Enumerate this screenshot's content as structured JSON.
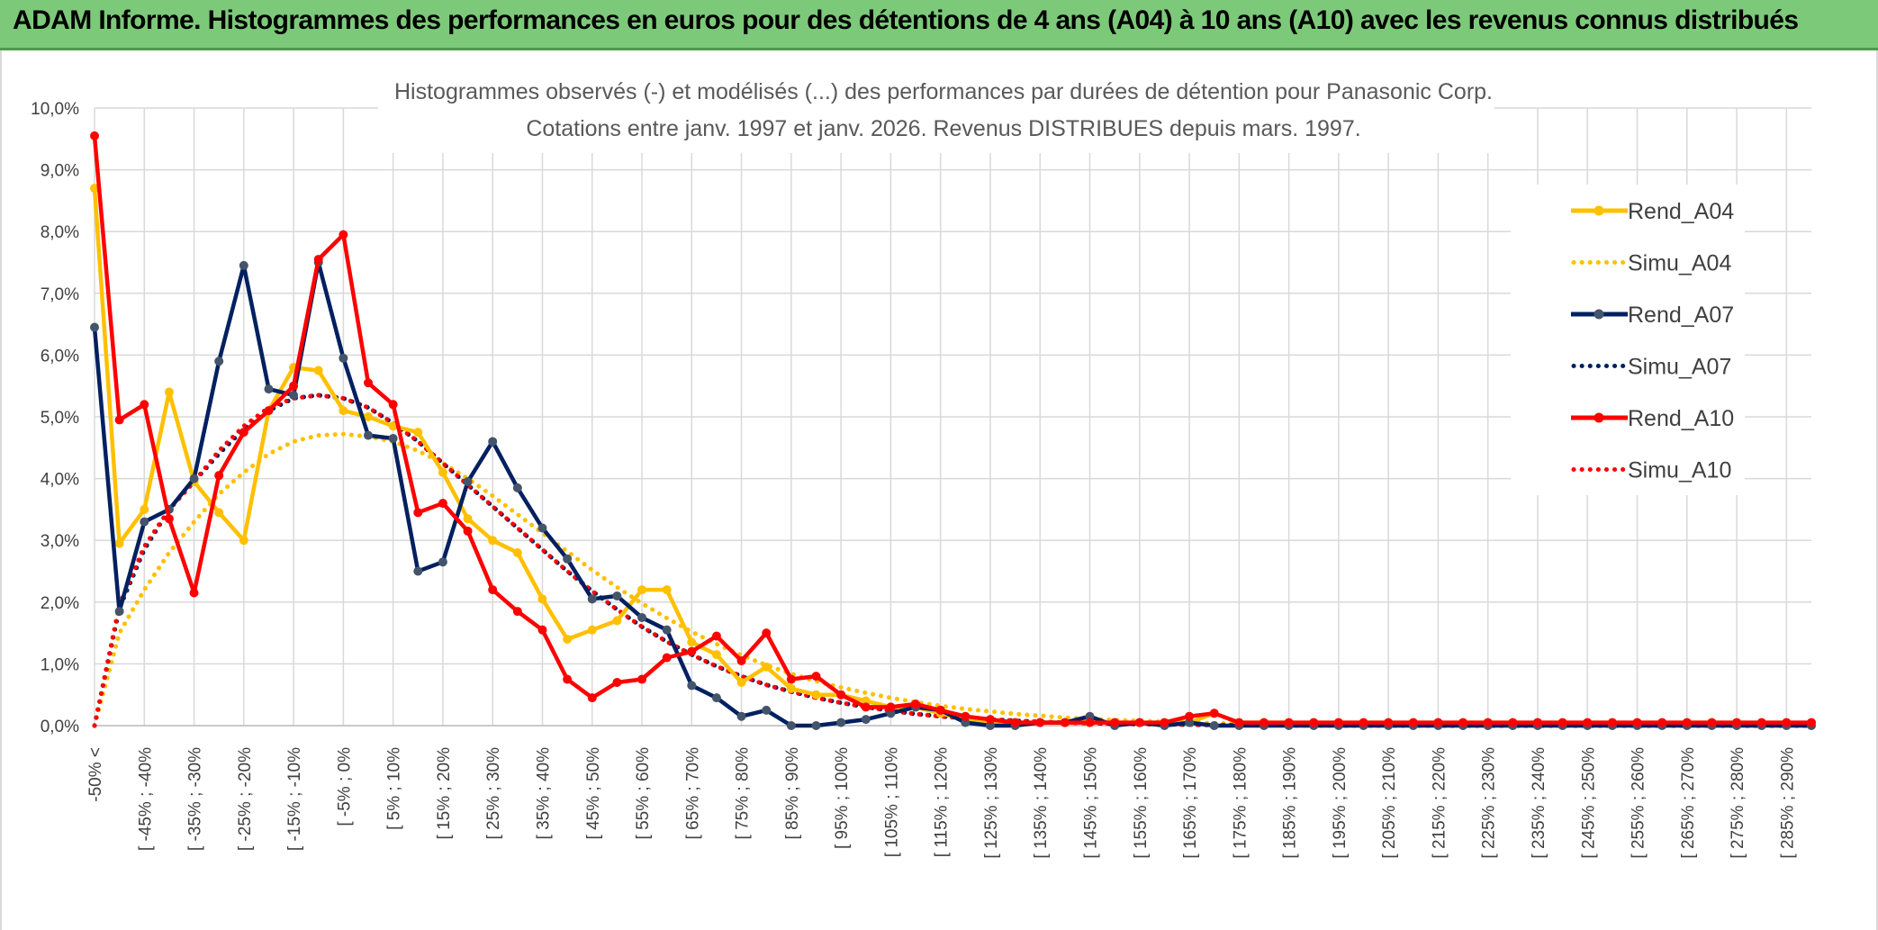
{
  "header": {
    "title": "ADAM Informe. Histogrammes des performances en euros pour des détentions de 4 ans (A04) à 10 ans (A10) avec les revenus connus distribués"
  },
  "chart_data": {
    "type": "line",
    "title": "Histogrammes observés (-) et modélisés (...) des performances par durées de détention pour Panasonic Corp.",
    "subtitle": "Cotations entre janv. 1997 et janv. 2026. Revenus DISTRIBUES depuis mars. 1997.",
    "xlabel": "",
    "ylabel": "",
    "ylim": [
      0,
      10
    ],
    "y_ticks": [
      "0,0%",
      "1,0%",
      "2,0%",
      "3,0%",
      "4,0%",
      "5,0%",
      "6,0%",
      "7,0%",
      "8,0%",
      "9,0%",
      "10,0%"
    ],
    "grid": true,
    "legend_position": "right",
    "x_labels": [
      "-50% <",
      "[ -45% ; -40%",
      "[ -35% ; -30%",
      "[ -25% ; -20%",
      "[ -15% ; -10%",
      "[ -5% ; 0%",
      "[ 5% ; 10%",
      "[ 15% ; 20%",
      "[ 25% ; 30%",
      "[ 35% ; 40%",
      "[ 45% ; 50%",
      "[ 55% ; 60%",
      "[ 65% ; 70%",
      "[ 75% ; 80%",
      "[ 85% ; 90%",
      "[ 95% ; 100%",
      "[ 105% ; 110%",
      "[ 115% ; 120%",
      "[ 125% ; 130%",
      "[ 135% ; 140%",
      "[ 145% ; 150%",
      "[ 155% ; 160%",
      "[ 165% ; 170%",
      "[ 175% ; 180%",
      "[ 185% ; 190%",
      "[ 195% ; 200%",
      "[ 205% ; 210%",
      "[ 215% ; 220%",
      "[ 225% ; 230%",
      "[ 235% ; 240%",
      "[ 245% ; 250%",
      "[ 255% ; 260%",
      "[ 265% ; 270%",
      "[ 275% ; 280%",
      "[ 285% ; 290%"
    ],
    "n_points": 70,
    "series": [
      {
        "name": "Rend_A04",
        "color": "#ffc000",
        "style": "solid",
        "values": [
          8.7,
          2.95,
          3.5,
          5.4,
          3.95,
          3.45,
          3.0,
          5.1,
          5.8,
          5.75,
          5.1,
          5.0,
          4.85,
          4.75,
          4.1,
          3.35,
          3.0,
          2.8,
          2.05,
          1.4,
          1.55,
          1.7,
          2.2,
          2.2,
          1.35,
          1.15,
          0.7,
          0.95,
          0.6,
          0.5,
          0.5,
          0.4,
          0.3,
          0.3,
          0.2,
          0.1,
          0.05,
          0.05,
          0.05,
          0.05,
          0.05,
          0.05,
          0.05,
          0.05,
          0.05,
          0.2,
          0.05,
          0.05,
          0.05,
          0.05,
          0.05,
          0.05,
          0.05,
          0.05,
          0.05,
          0.05,
          0.05,
          0.05,
          0.05,
          0.05,
          0.05,
          0.05,
          0.05,
          0.05,
          0.05,
          0.05,
          0.05,
          0.05,
          0.05,
          0.05
        ]
      },
      {
        "name": "Simu_A04",
        "color": "#ffc000",
        "style": "dotted",
        "values": [
          0.0,
          1.5,
          2.2,
          2.8,
          3.3,
          3.75,
          4.1,
          4.4,
          4.6,
          4.7,
          4.72,
          4.68,
          4.6,
          4.45,
          4.25,
          4.0,
          3.72,
          3.42,
          3.12,
          2.82,
          2.52,
          2.24,
          1.98,
          1.74,
          1.52,
          1.32,
          1.14,
          0.98,
          0.84,
          0.72,
          0.62,
          0.53,
          0.45,
          0.38,
          0.32,
          0.27,
          0.23,
          0.19,
          0.16,
          0.13,
          0.11,
          0.09,
          0.08,
          0.06,
          0.05,
          0.04,
          0.035,
          0.03,
          0.025,
          0.02,
          0.015,
          0.012,
          0.01,
          0.008,
          0.006,
          0.005,
          0.004,
          0.003,
          0.002,
          0.002,
          0.001,
          0.001,
          0.001,
          0.0,
          0.0,
          0.0,
          0.0,
          0.0,
          0.0,
          0.0
        ]
      },
      {
        "name": "Rend_A07",
        "color": "#002060",
        "style": "solid",
        "values": [
          6.45,
          1.85,
          3.3,
          3.5,
          4.0,
          5.9,
          7.45,
          5.45,
          5.35,
          7.5,
          5.95,
          4.7,
          4.65,
          2.5,
          2.65,
          3.95,
          4.6,
          3.85,
          3.2,
          2.7,
          2.05,
          2.1,
          1.75,
          1.55,
          0.65,
          0.45,
          0.15,
          0.25,
          0.0,
          0.0,
          0.05,
          0.1,
          0.2,
          0.3,
          0.25,
          0.05,
          0.0,
          0.0,
          0.05,
          0.05,
          0.15,
          0.0,
          0.05,
          0.0,
          0.05,
          0.0,
          0.0,
          0.0,
          0.0,
          0.0,
          0.0,
          0.0,
          0.0,
          0.0,
          0.0,
          0.0,
          0.0,
          0.0,
          0.0,
          0.0,
          0.0,
          0.0,
          0.0,
          0.0,
          0.0,
          0.0,
          0.0,
          0.0,
          0.0,
          0.0
        ]
      },
      {
        "name": "Simu_A07",
        "color": "#002060",
        "style": "dotted",
        "values": [
          0.0,
          1.9,
          2.85,
          3.5,
          3.95,
          4.4,
          4.8,
          5.1,
          5.3,
          5.35,
          5.3,
          5.15,
          4.9,
          4.6,
          4.25,
          3.9,
          3.55,
          3.2,
          2.85,
          2.5,
          2.18,
          1.88,
          1.6,
          1.36,
          1.15,
          0.96,
          0.8,
          0.66,
          0.55,
          0.45,
          0.37,
          0.3,
          0.24,
          0.19,
          0.15,
          0.12,
          0.1,
          0.08,
          0.06,
          0.05,
          0.04,
          0.03,
          0.025,
          0.02,
          0.015,
          0.01,
          0.008,
          0.006,
          0.005,
          0.004,
          0.003,
          0.002,
          0.002,
          0.001,
          0.001,
          0.0,
          0.0,
          0.0,
          0.0,
          0.0,
          0.0,
          0.0,
          0.0,
          0.0,
          0.0,
          0.0,
          0.0,
          0.0,
          0.0,
          0.0
        ]
      },
      {
        "name": "Rend_A10",
        "color": "#ff0000",
        "style": "solid",
        "values": [
          9.55,
          4.95,
          5.2,
          3.35,
          2.15,
          4.05,
          4.75,
          5.1,
          5.5,
          7.55,
          7.95,
          5.55,
          5.2,
          3.45,
          3.6,
          3.15,
          2.2,
          1.85,
          1.55,
          0.75,
          0.45,
          0.7,
          0.75,
          1.1,
          1.2,
          1.45,
          1.05,
          1.5,
          0.75,
          0.8,
          0.5,
          0.3,
          0.3,
          0.35,
          0.25,
          0.15,
          0.1,
          0.05,
          0.05,
          0.05,
          0.05,
          0.05,
          0.05,
          0.05,
          0.15,
          0.2,
          0.05,
          0.05,
          0.05,
          0.05,
          0.05,
          0.05,
          0.05,
          0.05,
          0.05,
          0.05,
          0.05,
          0.05,
          0.05,
          0.05,
          0.05,
          0.05,
          0.05,
          0.05,
          0.05,
          0.05,
          0.05,
          0.05,
          0.05,
          0.05
        ]
      },
      {
        "name": "Simu_A10",
        "color": "#ff0000",
        "style": "dotted",
        "values": [
          0.0,
          1.95,
          2.9,
          3.5,
          3.95,
          4.45,
          4.85,
          5.15,
          5.3,
          5.35,
          5.3,
          5.15,
          4.9,
          4.6,
          4.25,
          3.9,
          3.55,
          3.2,
          2.85,
          2.5,
          2.18,
          1.88,
          1.6,
          1.36,
          1.15,
          0.96,
          0.8,
          0.66,
          0.55,
          0.45,
          0.37,
          0.3,
          0.24,
          0.19,
          0.15,
          0.12,
          0.1,
          0.08,
          0.06,
          0.05,
          0.04,
          0.03,
          0.025,
          0.02,
          0.015,
          0.01,
          0.008,
          0.006,
          0.005,
          0.004,
          0.003,
          0.002,
          0.002,
          0.001,
          0.001,
          0.0,
          0.0,
          0.0,
          0.0,
          0.0,
          0.0,
          0.0,
          0.0,
          0.0,
          0.0,
          0.0,
          0.0,
          0.0,
          0.0,
          0.0
        ]
      }
    ]
  }
}
